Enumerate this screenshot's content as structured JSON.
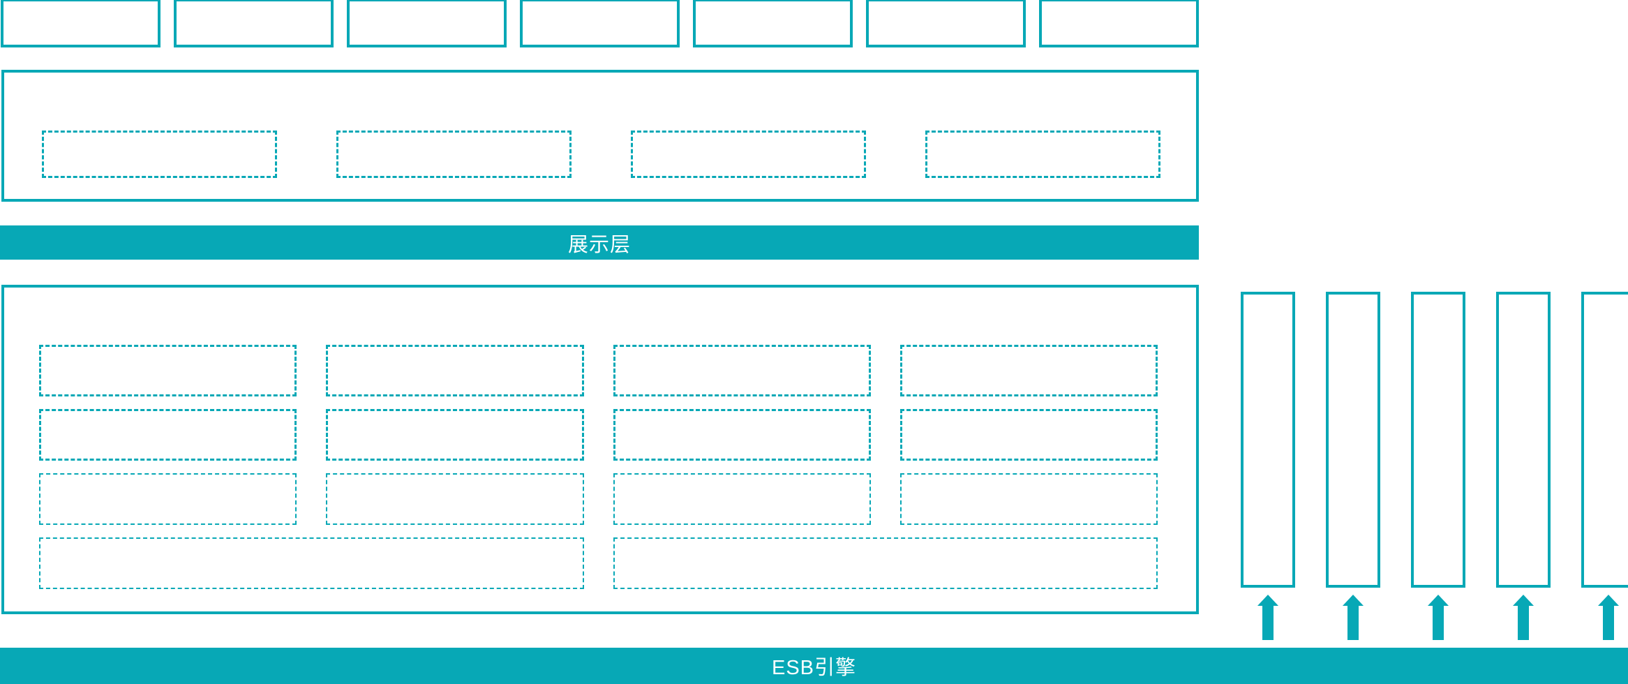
{
  "diagram": {
    "colors": {
      "accent": "#07A8B6",
      "bar_text": "#FFFFFF",
      "background": "#FFFFFF"
    },
    "top_row": {
      "box_count": 7
    },
    "upper_panel": {
      "dashed_box_count": 4
    },
    "presentation_bar": {
      "label": "展示层"
    },
    "main_panel": {
      "dense_dash_box_count": 8,
      "fine_dash_box_count": 4,
      "wide_dash_box_count": 2
    },
    "right_columns": {
      "column_count": 5
    },
    "esb_bar": {
      "label": "ESB引擎"
    }
  }
}
